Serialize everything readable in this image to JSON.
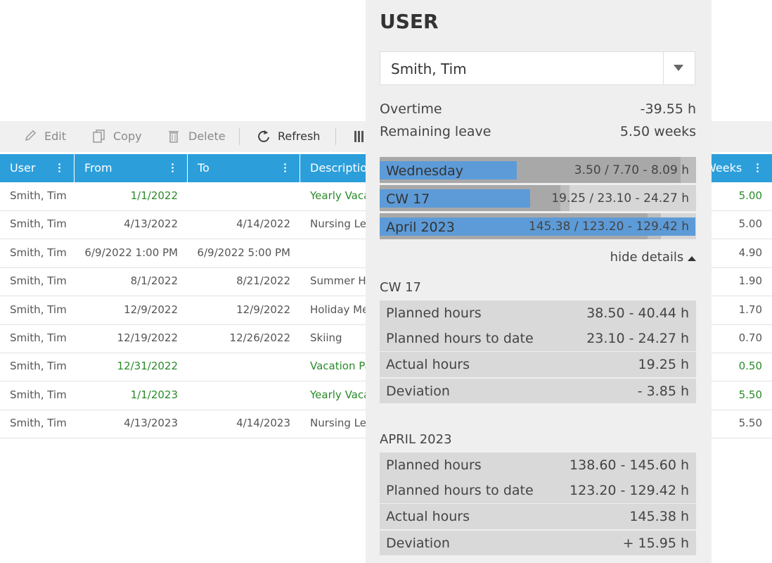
{
  "toolbar": {
    "buttons": [
      "Edit",
      "Copy",
      "Delete",
      "Refresh"
    ]
  },
  "table": {
    "columns": [
      "User",
      "From",
      "To",
      "Description",
      "Weeks"
    ],
    "rows": [
      {
        "user": "Smith, Tim",
        "from": "1/1/2022",
        "description": "Yearly Vaca",
        "weeks": "5.00",
        "highlight": true
      },
      {
        "user": "Smith, Tim",
        "from": "4/13/2022",
        "to": "4/14/2022",
        "description": "Nursing Lea",
        "weeks": "5.00"
      },
      {
        "user": "Smith, Tim",
        "from": "6/9/2022 1:00 PM",
        "to": "6/9/2022 5:00 PM",
        "weeks": "4.90"
      },
      {
        "user": "Smith, Tim",
        "from": "8/1/2022",
        "to": "8/21/2022",
        "description": "Summer He",
        "weeks": "1.90"
      },
      {
        "user": "Smith, Tim",
        "from": "12/9/2022",
        "to": "12/9/2022",
        "description": "Holiday Me",
        "weeks": "1.70"
      },
      {
        "user": "Smith, Tim",
        "from": "12/19/2022",
        "to": "12/26/2022",
        "description": "Skiing",
        "weeks": "0.70"
      },
      {
        "user": "Smith, Tim",
        "from": "12/31/2022",
        "description": "Vacation Pa",
        "weeks": "0.50",
        "highlight": true
      },
      {
        "user": "Smith, Tim",
        "from": "1/1/2023",
        "description": "Yearly Vaca",
        "weeks": "5.50",
        "highlight": true
      },
      {
        "user": "Smith, Tim",
        "from": "4/13/2023",
        "to": "4/14/2023",
        "description": "Nursing Lea",
        "weeks": "5.50"
      }
    ]
  },
  "panel": {
    "title": "USER",
    "user_select": "Smith, Tim",
    "summary": [
      {
        "label": "Overtime",
        "value": "-39.55 h"
      },
      {
        "label": "Remaining leave",
        "value": "5.50 weeks"
      }
    ],
    "bars": [
      {
        "label": "Wednesday",
        "value_label": "3.50 / 7.70 - 8.09 h",
        "actual": 3.5,
        "to_date": [
          7.7,
          8.09
        ]
      },
      {
        "label": "CW 17",
        "value_label": "19.25 / 23.10 - 24.27 h",
        "actual": 19.25,
        "to_date": [
          23.1,
          24.27
        ],
        "planned_max": 40.44
      },
      {
        "label": "April 2023",
        "value_label": "145.38 / 123.20 - 129.42 h",
        "actual": 145.38,
        "to_date": [
          123.2,
          129.42
        ],
        "planned_max": 145.6
      }
    ],
    "toggle": "hide details",
    "sections": [
      {
        "title": "CW 17",
        "rows": [
          {
            "label": "Planned hours",
            "value": "38.50 - 40.44 h"
          },
          {
            "label": "Planned hours to date",
            "value": "23.10 - 24.27 h"
          },
          {
            "label": "Actual hours",
            "value": "19.25 h"
          },
          {
            "label": "Deviation",
            "value": "- 3.85 h"
          }
        ]
      },
      {
        "title": "APRIL 2023",
        "rows": [
          {
            "label": "Planned hours",
            "value": "138.60 - 145.60 h"
          },
          {
            "label": "Planned hours to date",
            "value": "123.20 - 129.42 h"
          },
          {
            "label": "Actual hours",
            "value": "145.38 h"
          },
          {
            "label": "Deviation",
            "value": "+ 15.95 h"
          }
        ]
      }
    ]
  }
}
